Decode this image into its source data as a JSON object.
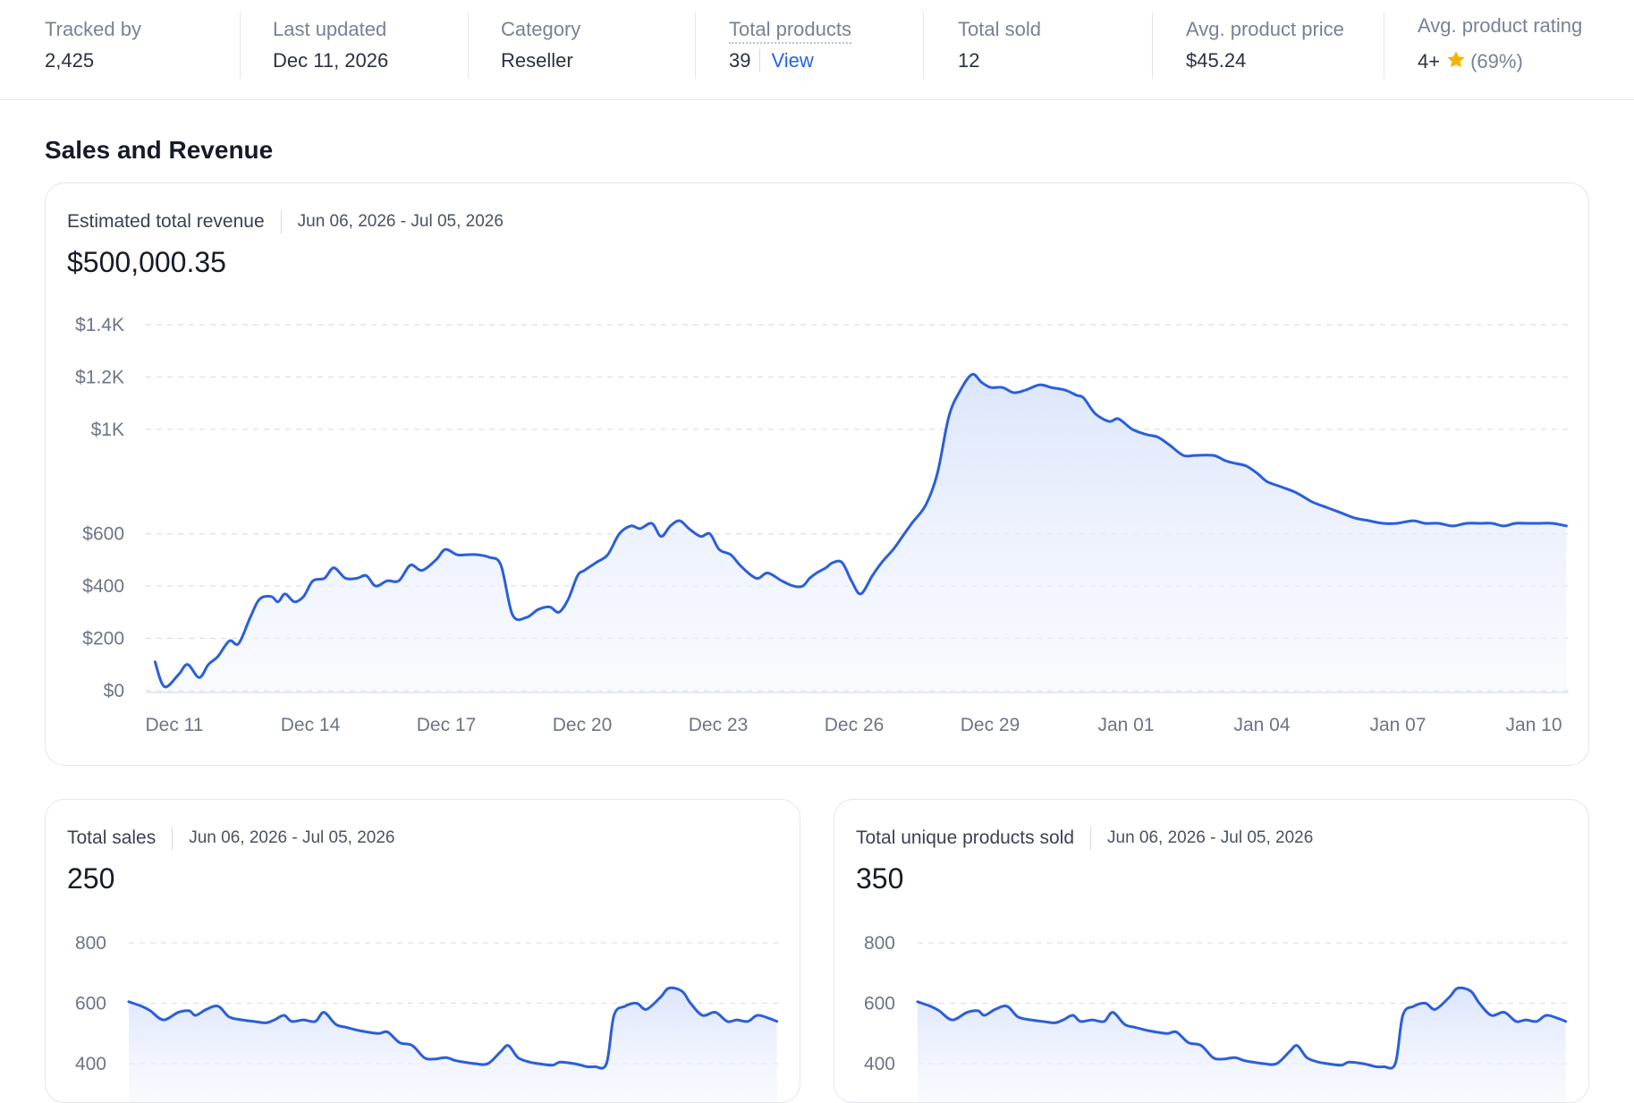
{
  "stats": [
    {
      "label": "Tracked by",
      "value": "2,425"
    },
    {
      "label": "Last updated",
      "value": "Dec 11, 2026"
    },
    {
      "label": "Category",
      "value": "Reseller"
    },
    {
      "label": "Total products",
      "value": "39",
      "link": "View"
    },
    {
      "label": "Total sold",
      "value": "12"
    },
    {
      "label": "Avg. product price",
      "value": "$45.24"
    },
    {
      "label": "Avg. product rating",
      "value": "4+",
      "percent": "(69%)"
    }
  ],
  "colors": {
    "accent": "#2563eb",
    "line": "#2b5fd9",
    "star": "#f5b301",
    "grid": "#dde1ea"
  },
  "section_title": "Sales and Revenue",
  "cards": {
    "revenue": {
      "title": "Estimated total revenue",
      "range": "Jun 06, 2026 - Jul 05, 2026",
      "value": "$500,000.35"
    },
    "sales": {
      "title": "Total sales",
      "range": "Jun 06, 2026 - Jul 05, 2026",
      "value": "250"
    },
    "unique": {
      "title": "Total unique products sold",
      "range": "Jun 06, 2026 - Jul 05, 2026",
      "value": "350"
    }
  },
  "chart_data": [
    {
      "type": "area",
      "title": "Estimated total revenue",
      "ylim": [
        0,
        1400
      ],
      "yticks": [
        0,
        200,
        400,
        600,
        1000,
        1200,
        1400
      ],
      "ytick_labels": [
        "$0",
        "$200",
        "$400",
        "$600",
        "$1K",
        "$1.2K",
        "$1.4K"
      ],
      "xtick_labels": [
        "Dec 11",
        "Dec 14",
        "Dec 17",
        "Dec 20",
        "Dec 23",
        "Dec 26",
        "Dec 29",
        "Jan 01",
        "Jan 04",
        "Jan 07",
        "Jan 10"
      ],
      "x": [
        -0.6,
        -0.2,
        0.4,
        0.8,
        1.3,
        1.7,
        2.1,
        2.6,
        3,
        3.5,
        3.9,
        4.4,
        4.7,
        5,
        5.4,
        5.8,
        6.2,
        6.7,
        7.1,
        7.6,
        8.1,
        8.5,
        8.9,
        9.4,
        9.9,
        10.4,
        10.9,
        11.5,
        11.9,
        12.4,
        12.8,
        13.3,
        13.8,
        14.3,
        14.8,
        15.4,
        15.9,
        16.4,
        16.8,
        17.2,
        17.6,
        17.9,
        18.4,
        18.9,
        19.4,
        19.9,
        20.3,
        20.8,
        21.2,
        21.6,
        22,
        22.4,
        22.9,
        23.3,
        23.7,
        24.2,
        24.6,
        25.1,
        25.4,
        25.8,
        26.4,
        26.9,
        27.3,
        27.6,
        27.9,
        28.3,
        28.6,
        29,
        29.4,
        29.8,
        30.3,
        30.7,
        31.2,
        31.6,
        32,
        32.6,
        33.1,
        33.6,
        34.1,
        34.6,
        35,
        35.4,
        35.9,
        36.4,
        36.9,
        37.5,
        38,
        38.6,
        39.1,
        39.4,
        39.9,
        40.5,
        40.9,
        41.5,
        42.1,
        42.6,
        43.1,
        43.7,
        44.2,
        45,
        45.5,
        45.9,
        46.4,
        46.9,
        47.3,
        47.9,
        48.5,
        48.9,
        49.3,
        49.9,
        50.5,
        51.1,
        51.7,
        52.3,
        52.9,
        53.6,
        54.1,
        54.7,
        55.3,
        55.9,
        56.5,
        57,
        57.5,
        58,
        58.5,
        59,
        59.6,
        60.2
      ],
      "values": [
        110,
        15,
        60,
        100,
        50,
        100,
        130,
        190,
        180,
        280,
        350,
        360,
        340,
        370,
        340,
        360,
        420,
        430,
        470,
        430,
        430,
        440,
        400,
        420,
        420,
        480,
        460,
        500,
        540,
        520,
        520,
        520,
        510,
        480,
        290,
        280,
        310,
        320,
        300,
        350,
        440,
        460,
        490,
        520,
        600,
        630,
        620,
        640,
        590,
        630,
        650,
        620,
        590,
        600,
        540,
        520,
        480,
        440,
        430,
        450,
        420,
        400,
        400,
        430,
        450,
        470,
        490,
        490,
        420,
        370,
        440,
        490,
        540,
        590,
        640,
        710,
        830,
        1050,
        1150,
        1210,
        1180,
        1160,
        1160,
        1140,
        1150,
        1170,
        1160,
        1150,
        1130,
        1120,
        1060,
        1030,
        1040,
        1000,
        980,
        970,
        940,
        900,
        900,
        900,
        880,
        870,
        860,
        830,
        800,
        780,
        760,
        740,
        720,
        700,
        680,
        660,
        650,
        640,
        640,
        650,
        640,
        640,
        630,
        640,
        640,
        640,
        630,
        640,
        640,
        640,
        640,
        630
      ],
      "series_color": "#2b5fd9"
    },
    {
      "type": "area",
      "title": "Total sales",
      "ylim": [
        400,
        800
      ],
      "yticks": [
        400,
        600,
        800
      ],
      "ytick_labels": [
        "400",
        "600",
        "800"
      ],
      "x": [
        0,
        1.2,
        2,
        3.2,
        4.6,
        5.6,
        6.2,
        7.2,
        8.3,
        9.3,
        10.5,
        11.6,
        12.7,
        13.5,
        14.4,
        15.1,
        16.2,
        17.3,
        18.1,
        19.2,
        20.2,
        21.3,
        22.1,
        23.2,
        24,
        25.1,
        26.3,
        27.4,
        28.3,
        29.4,
        30.3,
        31.1,
        32.1,
        33.3,
        34.5,
        35.2,
        36.1,
        37.2,
        38,
        39.3,
        40,
        41.3,
        42.5,
        43.2,
        44.3,
        45,
        46,
        47.1,
        48,
        49.3,
        50.1,
        51.3,
        52.1,
        53.2,
        54.4,
        55.5,
        56.4,
        57.4,
        58.3,
        59.4,
        60.1
      ],
      "values": [
        605,
        590,
        575,
        545,
        570,
        575,
        560,
        580,
        590,
        555,
        545,
        540,
        535,
        545,
        560,
        540,
        545,
        540,
        570,
        530,
        520,
        510,
        505,
        500,
        505,
        470,
        460,
        420,
        415,
        420,
        410,
        405,
        400,
        400,
        440,
        460,
        420,
        405,
        400,
        395,
        405,
        400,
        390,
        390,
        400,
        560,
        590,
        600,
        580,
        620,
        650,
        640,
        600,
        560,
        570,
        540,
        545,
        540,
        560,
        550,
        540
      ],
      "series_color": "#2b5fd9"
    },
    {
      "type": "area",
      "title": "Total unique products sold",
      "ylim": [
        400,
        800
      ],
      "yticks": [
        400,
        600,
        800
      ],
      "ytick_labels": [
        "400",
        "600",
        "800"
      ],
      "x": [
        0,
        1.2,
        2,
        3.2,
        4.6,
        5.6,
        6.2,
        7.2,
        8.3,
        9.3,
        10.5,
        11.6,
        12.7,
        13.5,
        14.4,
        15.1,
        16.2,
        17.3,
        18.1,
        19.2,
        20.2,
        21.3,
        22.1,
        23.2,
        24,
        25.1,
        26.3,
        27.4,
        28.3,
        29.4,
        30.3,
        31.1,
        32.1,
        33.3,
        34.5,
        35.2,
        36.1,
        37.2,
        38,
        39.3,
        40,
        41.3,
        42.5,
        43.2,
        44.3,
        45,
        46,
        47.1,
        48,
        49.3,
        50.1,
        51.3,
        52.1,
        53.2,
        54.4,
        55.5,
        56.4,
        57.4,
        58.3,
        59.4,
        60.1
      ],
      "values": [
        605,
        590,
        575,
        545,
        570,
        575,
        560,
        580,
        590,
        555,
        545,
        540,
        535,
        545,
        560,
        540,
        545,
        540,
        570,
        530,
        520,
        510,
        505,
        500,
        505,
        470,
        460,
        420,
        415,
        420,
        410,
        405,
        400,
        400,
        440,
        460,
        420,
        405,
        400,
        395,
        405,
        400,
        390,
        390,
        400,
        560,
        590,
        600,
        580,
        620,
        650,
        640,
        600,
        560,
        570,
        540,
        545,
        540,
        560,
        550,
        540
      ],
      "series_color": "#2b5fd9"
    }
  ]
}
